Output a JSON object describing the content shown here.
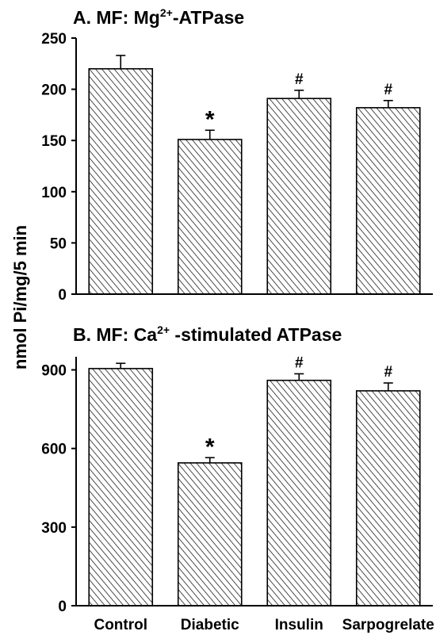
{
  "figure": {
    "ylabel_main": "nmol Pi/mg/5 min"
  },
  "chart_data": [
    {
      "type": "bar",
      "title_main": "A. MF: Mg",
      "title_sup": "2+",
      "title_rest": "-ATPase",
      "ylim": [
        0,
        250
      ],
      "yticks": [
        "0",
        "50",
        "100",
        "150",
        "200",
        "250"
      ],
      "categories": [
        "Control",
        "Diabetic",
        "Insulin",
        "Sarpogrelate"
      ],
      "values": [
        220,
        151,
        191,
        182
      ],
      "errors": [
        13,
        9,
        8,
        7
      ],
      "markers": [
        "",
        "*",
        "#",
        "#"
      ],
      "show_category_labels": false
    },
    {
      "type": "bar",
      "title_main": "B. MF: Ca",
      "title_sup": "2+",
      "title_rest": " -stimulated ATPase",
      "ylim": [
        0,
        950
      ],
      "yticks": [
        "0",
        "300",
        "600",
        "900"
      ],
      "categories": [
        "Control",
        "Diabetic",
        "Insulin",
        "Sarpogrelate"
      ],
      "values": [
        905,
        545,
        860,
        820
      ],
      "errors": [
        20,
        20,
        25,
        30
      ],
      "markers": [
        "",
        "*",
        "#",
        "#"
      ],
      "show_category_labels": true
    }
  ],
  "colors": {
    "bar_fill_pattern": "diagonal-hatch",
    "line": "#000000"
  }
}
